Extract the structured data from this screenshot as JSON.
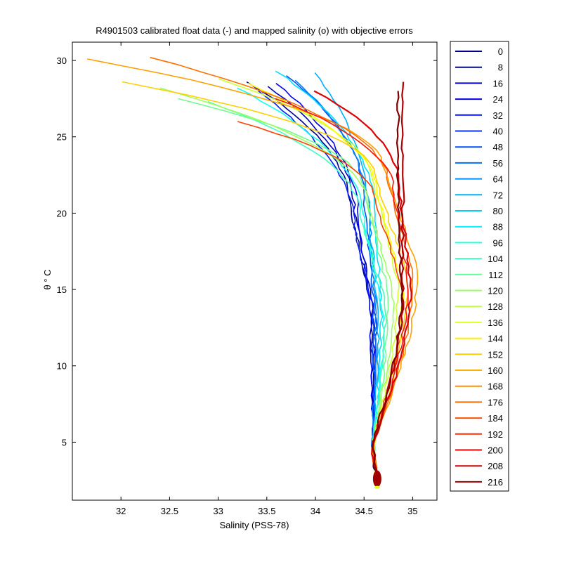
{
  "chart_data": {
    "type": "line",
    "title": "R4901503 calibrated float data (-) and mapped salinity (o) with objective errors",
    "xlabel": "Salinity (PSS-78)",
    "ylabel": "θ ° C",
    "xlim": [
      31.5,
      35.25
    ],
    "ylim": [
      1.2,
      31.2
    ],
    "xticks": [
      32,
      32.5,
      33,
      33.5,
      34,
      34.5,
      35
    ],
    "xtick_labels": [
      "32",
      "32.5",
      "33",
      "33.5",
      "34",
      "34.5",
      "35"
    ],
    "yticks": [
      5,
      10,
      15,
      20,
      25,
      30
    ],
    "ytick_labels": [
      "5",
      "10",
      "15",
      "20",
      "25",
      "30"
    ],
    "legend_placement": "outside-right",
    "colormap": "jet",
    "series": [
      {
        "name": "0",
        "color": "#00008f",
        "profile": {
          "s_top": 33.3,
          "t_top": 28.6,
          "s_mid": 34.35,
          "t_mid": 20.5,
          "s_therm": 34.58,
          "t_therm": 14.0,
          "s_bot": 34.63,
          "t_bot": 2.4
        }
      },
      {
        "name": "8",
        "color": "#0000bf",
        "profile": {
          "s_top": 33.5,
          "t_top": 28.3,
          "s_mid": 34.4,
          "t_mid": 20.2,
          "s_therm": 34.6,
          "t_therm": 13.6,
          "s_bot": 34.63,
          "t_bot": 2.5
        }
      },
      {
        "name": "16",
        "color": "#0000ef",
        "profile": {
          "s_top": 33.6,
          "t_top": 28.5,
          "s_mid": 34.45,
          "t_mid": 19.5,
          "s_therm": 34.57,
          "t_therm": 13.0,
          "s_bot": 34.64,
          "t_bot": 2.4
        }
      },
      {
        "name": "24",
        "color": "#0020ff",
        "profile": {
          "s_top": 33.4,
          "t_top": 28.0,
          "s_mid": 34.4,
          "t_mid": 19.0,
          "s_therm": 34.62,
          "t_therm": 13.2,
          "s_bot": 34.63,
          "t_bot": 2.5
        }
      },
      {
        "name": "32",
        "color": "#0050ff",
        "profile": {
          "s_top": 33.7,
          "t_top": 29.0,
          "s_mid": 34.5,
          "t_mid": 21.0,
          "s_therm": 34.6,
          "t_therm": 14.5,
          "s_bot": 34.64,
          "t_bot": 2.4
        }
      },
      {
        "name": "40",
        "color": "#0080ff",
        "profile": {
          "s_top": 33.8,
          "t_top": 28.7,
          "s_mid": 34.55,
          "t_mid": 20.0,
          "s_therm": 34.62,
          "t_therm": 13.8,
          "s_bot": 34.63,
          "t_bot": 2.6
        }
      },
      {
        "name": "48",
        "color": "#00afff",
        "profile": {
          "s_top": 34.0,
          "t_top": 29.2,
          "s_mid": 34.55,
          "t_mid": 19.8,
          "s_therm": 34.65,
          "t_therm": 13.5,
          "s_bot": 34.64,
          "t_bot": 2.4
        }
      },
      {
        "name": "56",
        "color": "#00dfff",
        "profile": {
          "s_top": 33.6,
          "t_top": 29.3,
          "s_mid": 34.6,
          "t_mid": 20.5,
          "s_therm": 34.68,
          "t_therm": 14.0,
          "s_bot": 34.63,
          "t_bot": 2.5
        }
      },
      {
        "name": "64",
        "color": "#10ffef",
        "profile": {
          "s_top": 33.2,
          "t_top": 28.2,
          "s_mid": 34.5,
          "t_mid": 19.5,
          "s_therm": 34.7,
          "t_therm": 13.2,
          "s_bot": 34.64,
          "t_bot": 2.4
        }
      },
      {
        "name": "72",
        "color": "#40ffbf",
        "profile": {
          "s_top": 32.9,
          "t_top": 27.3,
          "s_mid": 34.45,
          "t_mid": 20.0,
          "s_therm": 34.72,
          "t_therm": 14.2,
          "s_bot": 34.63,
          "t_bot": 2.5
        }
      },
      {
        "name": "80",
        "color": "#70ff8f",
        "profile": {
          "s_top": 32.6,
          "t_top": 27.5,
          "s_mid": 34.5,
          "t_mid": 21.5,
          "s_therm": 34.75,
          "t_therm": 14.8,
          "s_bot": 34.64,
          "t_bot": 2.4
        }
      },
      {
        "name": "88",
        "color": "#9fff60",
        "profile": {
          "s_top": 32.4,
          "t_top": 28.2,
          "s_mid": 34.55,
          "t_mid": 20.5,
          "s_therm": 34.8,
          "t_therm": 15.0,
          "s_bot": 34.63,
          "t_bot": 2.6
        }
      },
      {
        "name": "96",
        "color": "#cfff30",
        "profile": {
          "s_top": 33.0,
          "t_top": 28.8,
          "s_mid": 34.6,
          "t_mid": 22.0,
          "s_therm": 34.85,
          "t_therm": 15.5,
          "s_bot": 34.64,
          "t_bot": 2.4
        }
      },
      {
        "name": "104",
        "color": "#ffff00",
        "profile": {
          "s_top": 33.3,
          "t_top": 28.5,
          "s_mid": 34.65,
          "t_mid": 21.0,
          "s_therm": 34.9,
          "t_therm": 15.2,
          "s_bot": 34.63,
          "t_bot": 2.5
        }
      },
      {
        "name": "112",
        "color": "#ffcf00",
        "profile": {
          "s_top": 32.0,
          "t_top": 28.6,
          "s_mid": 34.6,
          "t_mid": 22.5,
          "s_therm": 34.95,
          "t_therm": 16.0,
          "s_bot": 34.64,
          "t_bot": 2.4
        }
      },
      {
        "name": "120",
        "color": "#ff9f00",
        "profile": {
          "s_top": 31.65,
          "t_top": 30.1,
          "s_mid": 34.7,
          "t_mid": 23.0,
          "s_therm": 35.05,
          "t_therm": 16.5,
          "s_bot": 34.63,
          "t_bot": 2.5
        }
      },
      {
        "name": "128",
        "color": "#ff7000",
        "profile": {
          "s_top": 32.3,
          "t_top": 30.2,
          "s_mid": 34.75,
          "t_mid": 22.0,
          "s_therm": 35.0,
          "t_therm": 16.0,
          "s_bot": 34.64,
          "t_bot": 2.4
        }
      },
      {
        "name": "136",
        "color": "#ff4000",
        "profile": {
          "s_top": 33.2,
          "t_top": 26.0,
          "s_mid": 34.6,
          "t_mid": 21.0,
          "s_therm": 34.9,
          "t_therm": 15.0,
          "s_bot": 34.63,
          "t_bot": 2.6
        }
      },
      {
        "name": "144",
        "color": "#ff1000",
        "profile": {
          "s_top": 33.6,
          "t_top": 27.5,
          "s_mid": 34.8,
          "t_mid": 21.5,
          "s_therm": 34.95,
          "t_therm": 15.8,
          "s_bot": 34.64,
          "t_bot": 2.4
        }
      },
      {
        "name": "152",
        "color": "#df0000",
        "profile": {
          "s_top": 34.0,
          "t_top": 28.0,
          "s_mid": 34.85,
          "t_mid": 22.0,
          "s_therm": 34.98,
          "t_therm": 15.5,
          "s_bot": 34.63,
          "t_bot": 2.5
        }
      },
      {
        "name": "160",
        "color": "#af0000",
        "profile": {
          "s_top": 34.9,
          "t_top": 28.6,
          "s_mid": 34.9,
          "t_mid": 23.0,
          "s_therm": 34.9,
          "t_therm": 15.0,
          "s_bot": 34.64,
          "t_bot": 2.4
        }
      },
      {
        "name": "168",
        "color": "#800000",
        "profile": {
          "s_top": 34.85,
          "t_top": 28.0,
          "s_mid": 34.85,
          "t_mid": 22.5,
          "s_therm": 34.88,
          "t_therm": 14.8,
          "s_bot": 34.63,
          "t_bot": 2.6
        }
      }
    ],
    "legend_entries": [
      {
        "label": "0",
        "color": "#00008f"
      },
      {
        "label": "8",
        "color": "#0000af"
      },
      {
        "label": "16",
        "color": "#0000cf"
      },
      {
        "label": "24",
        "color": "#0000ef"
      },
      {
        "label": "32",
        "color": "#0010ff"
      },
      {
        "label": "40",
        "color": "#0030ff"
      },
      {
        "label": "48",
        "color": "#0050ff"
      },
      {
        "label": "56",
        "color": "#0070ff"
      },
      {
        "label": "64",
        "color": "#0090ff"
      },
      {
        "label": "72",
        "color": "#00b0ff"
      },
      {
        "label": "80",
        "color": "#00d0ff"
      },
      {
        "label": "88",
        "color": "#00f0ff"
      },
      {
        "label": "96",
        "color": "#20ffdf"
      },
      {
        "label": "104",
        "color": "#40ffbf"
      },
      {
        "label": "112",
        "color": "#60ff9f"
      },
      {
        "label": "120",
        "color": "#9fff60"
      },
      {
        "label": "128",
        "color": "#bfff40"
      },
      {
        "label": "136",
        "color": "#dfff20"
      },
      {
        "label": "144",
        "color": "#ffef00"
      },
      {
        "label": "152",
        "color": "#ffcf00"
      },
      {
        "label": "160",
        "color": "#ffaf00"
      },
      {
        "label": "168",
        "color": "#ff8f00"
      },
      {
        "label": "176",
        "color": "#ff6f00"
      },
      {
        "label": "184",
        "color": "#ff4f00"
      },
      {
        "label": "192",
        "color": "#ff2f00"
      },
      {
        "label": "200",
        "color": "#ef0000"
      },
      {
        "label": "208",
        "color": "#cf0000"
      },
      {
        "label": "216",
        "color": "#a00000"
      }
    ]
  }
}
